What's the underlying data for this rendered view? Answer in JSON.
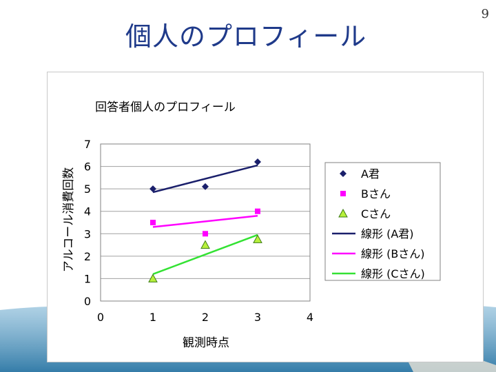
{
  "slide": {
    "title": "個人のプロフィール",
    "page_number": "9"
  },
  "colors": {
    "title": "#1f3a8a",
    "series_a": "#1a1f6b",
    "series_b": "#ff00ff",
    "series_c": "#33e233",
    "marker_c_fill": "#b7f03c"
  },
  "chart_data": {
    "type": "scatter",
    "title": "回答者個人のプロフィール",
    "xlabel": "観測時点",
    "ylabel": "アルコール消費回数",
    "xlim": [
      0,
      4
    ],
    "ylim": [
      0,
      7
    ],
    "x_ticks": [
      "0",
      "1",
      "2",
      "3",
      "4"
    ],
    "y_ticks": [
      "0",
      "1",
      "2",
      "3",
      "4",
      "5",
      "6",
      "7"
    ],
    "grid": "horizontal",
    "legend_position": "right",
    "series": [
      {
        "name": "A君",
        "marker": "diamond",
        "x": [
          1,
          2,
          3
        ],
        "y": [
          5.0,
          5.1,
          6.2
        ]
      },
      {
        "name": "Bさん",
        "marker": "square",
        "x": [
          1,
          2,
          3
        ],
        "y": [
          3.5,
          3.0,
          4.0
        ]
      },
      {
        "name": "Cさん",
        "marker": "triangle",
        "x": [
          1,
          2,
          3
        ],
        "y": [
          1.0,
          2.5,
          2.75
        ]
      }
    ],
    "trendlines": [
      {
        "name": "線形 (A君)",
        "x": [
          1,
          3
        ],
        "y": [
          4.85,
          6.05
        ]
      },
      {
        "name": "線形 (Bさん)",
        "x": [
          1,
          3
        ],
        "y": [
          3.3,
          3.8
        ]
      },
      {
        "name": "線形 (Cさん)",
        "x": [
          1,
          3
        ],
        "y": [
          1.2,
          2.95
        ]
      }
    ]
  }
}
